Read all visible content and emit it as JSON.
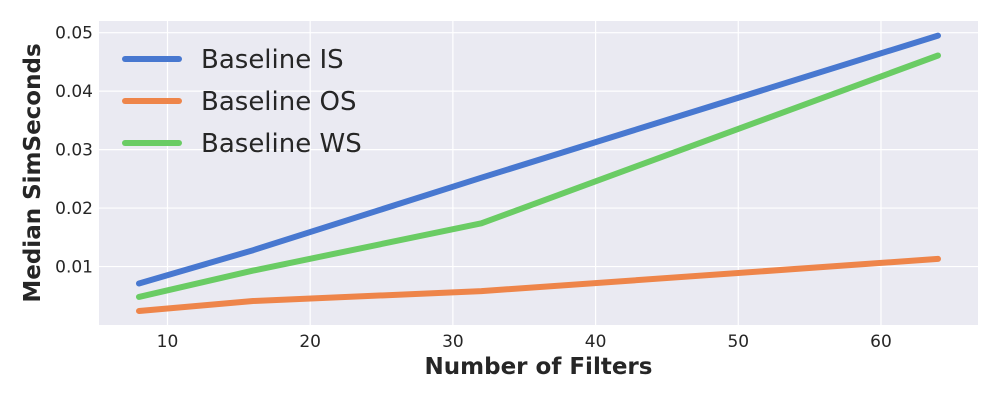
{
  "chart_data": {
    "type": "line",
    "xlabel": "Number of Filters",
    "ylabel": "Median SimSeconds",
    "xlim": [
      5.2,
      66.8
    ],
    "ylim": [
      0.0,
      0.052
    ],
    "x_ticks": [
      10,
      20,
      30,
      40,
      50,
      60
    ],
    "x_tick_labels": [
      "10",
      "20",
      "30",
      "40",
      "50",
      "60"
    ],
    "y_ticks": [
      0.01,
      0.02,
      0.03,
      0.04,
      0.05
    ],
    "y_tick_labels": [
      "0.01",
      "0.02",
      "0.03",
      "0.04",
      "0.05"
    ],
    "grid": true,
    "legend_position": "top-left",
    "background": "#eaeaf2",
    "x": [
      8,
      16,
      32,
      64
    ],
    "series": [
      {
        "name": "Baseline IS",
        "color": "#4878d0",
        "values": [
          0.0071,
          0.0128,
          0.0252,
          0.0495
        ]
      },
      {
        "name": "Baseline OS",
        "color": "#ee854a",
        "values": [
          0.0024,
          0.0041,
          0.0058,
          0.0113
        ]
      },
      {
        "name": "Baseline WS",
        "color": "#6acc64",
        "values": [
          0.0048,
          0.0093,
          0.0174,
          0.0461
        ]
      }
    ]
  }
}
